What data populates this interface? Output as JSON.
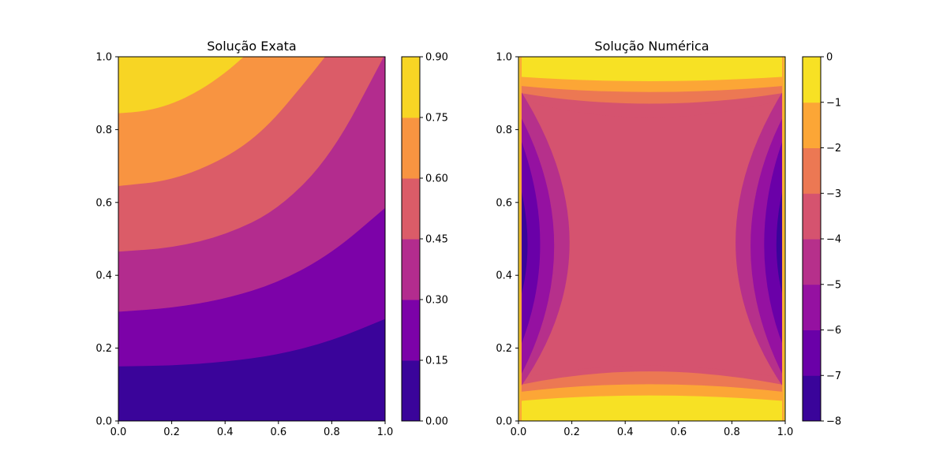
{
  "chart_data": [
    {
      "type": "heatmap",
      "subtype": "filled-contour",
      "title": "Solução Exata",
      "xlabel": "",
      "ylabel": "",
      "xlim": [
        0,
        1
      ],
      "ylim": [
        0,
        1
      ],
      "x_ticks": [
        "0.0",
        "0.2",
        "0.4",
        "0.6",
        "0.8",
        "1.0"
      ],
      "y_ticks": [
        "0.0",
        "0.2",
        "0.4",
        "0.6",
        "0.8",
        "1.0"
      ],
      "colormap": "plasma",
      "levels": [
        0.0,
        0.15,
        0.3,
        0.45,
        0.6,
        0.75,
        0.9
      ],
      "colorbar_ticks": [
        "0.00",
        "0.15",
        "0.30",
        "0.45",
        "0.60",
        "0.75",
        "0.90"
      ],
      "band_colors": [
        "#3a049a",
        "#7c02a8",
        "#b32c8e",
        "#db5c68",
        "#f89441",
        "#f7d524"
      ],
      "contour_boundaries": [
        {
          "level": 0.15,
          "points": [
            [
              0,
              0.15
            ],
            [
              0.2,
              0.152
            ],
            [
              0.4,
              0.162
            ],
            [
              0.6,
              0.182
            ],
            [
              0.8,
              0.22
            ],
            [
              1.0,
              0.28
            ]
          ]
        },
        {
          "level": 0.3,
          "points": [
            [
              0,
              0.3
            ],
            [
              0.2,
              0.31
            ],
            [
              0.4,
              0.335
            ],
            [
              0.6,
              0.38
            ],
            [
              0.8,
              0.46
            ],
            [
              1.0,
              0.585
            ]
          ]
        },
        {
          "level": 0.45,
          "points": [
            [
              0,
              0.465
            ],
            [
              0.2,
              0.475
            ],
            [
              0.4,
              0.51
            ],
            [
              0.6,
              0.58
            ],
            [
              0.8,
              0.73
            ],
            [
              0.995,
              1.0
            ]
          ]
        },
        {
          "level": 0.6,
          "points": [
            [
              0,
              0.645
            ],
            [
              0.2,
              0.66
            ],
            [
              0.4,
              0.72
            ],
            [
              0.55,
              0.8
            ],
            [
              0.7,
              0.93
            ],
            [
              0.775,
              1.0
            ]
          ]
        },
        {
          "level": 0.75,
          "points": [
            [
              0,
              0.845
            ],
            [
              0.1,
              0.85
            ],
            [
              0.2,
              0.87
            ],
            [
              0.3,
              0.905
            ],
            [
              0.4,
              0.955
            ],
            [
              0.47,
              1.0
            ]
          ]
        }
      ]
    },
    {
      "type": "heatmap",
      "subtype": "filled-contour",
      "title": "Solução Numérica",
      "xlabel": "",
      "ylabel": "",
      "xlim": [
        0,
        1
      ],
      "ylim": [
        0,
        1
      ],
      "x_ticks": [
        "0.0",
        "0.2",
        "0.4",
        "0.6",
        "0.8",
        "1.0"
      ],
      "y_ticks": [
        "0.0",
        "0.2",
        "0.4",
        "0.6",
        "0.8",
        "1.0"
      ],
      "colormap": "plasma",
      "levels": [
        -8,
        -7,
        -6,
        -5,
        -4,
        -3,
        -2,
        -1,
        0
      ],
      "colorbar_ticks": [
        "−8",
        "−7",
        "−6",
        "−5",
        "−4",
        "−3",
        "−2",
        "−1",
        "0"
      ],
      "band_colors": [
        "#3a049a",
        "#6a00a8",
        "#9511a1",
        "#b6308b",
        "#d5536f",
        "#ec7853",
        "#fca636",
        "#f7e124"
      ],
      "saddle_point": [
        0.48,
        0.48
      ],
      "contour_regions": [
        {
          "level_from": -1,
          "inset_x": 0.005,
          "inset_y": 0.055,
          "pinch": 0.05
        },
        {
          "level_from": -2,
          "inset_x": 0.008,
          "inset_y": 0.08,
          "pinch": 0.07
        },
        {
          "level_from": -3,
          "inset_x": 0.012,
          "inset_y": 0.1,
          "pinch": 0.12
        },
        {
          "level_from": -4,
          "inset_x": 0.02,
          "inset_y": 0.12,
          "pinch": 0.22
        },
        {
          "level_from": -5,
          "inset_x": 0.005,
          "inset_y": 0.14,
          "pinch": 0.33
        },
        {
          "level_from": -6,
          "inset_x": 0.005,
          "inset_y": 0.17,
          "pinch": 0.2
        },
        {
          "level_from": -7,
          "inset_x": 0.005,
          "inset_y": 0.22,
          "pinch": 0.11
        }
      ]
    }
  ]
}
